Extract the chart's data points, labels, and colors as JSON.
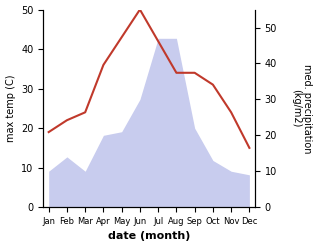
{
  "months": [
    "Jan",
    "Feb",
    "Mar",
    "Apr",
    "May",
    "Jun",
    "Jul",
    "Aug",
    "Sep",
    "Oct",
    "Nov",
    "Dec"
  ],
  "temperature": [
    19,
    22,
    24,
    36,
    43,
    50,
    42,
    34,
    34,
    31,
    24,
    15
  ],
  "precipitation": [
    10,
    14,
    10,
    20,
    21,
    30,
    47,
    47,
    22,
    13,
    10,
    9
  ],
  "temp_color": "#c0392b",
  "precip_fill_color": "#c8ccee",
  "temp_ylim": [
    0,
    50
  ],
  "precip_ylim": [
    0,
    55
  ],
  "xlabel": "date (month)",
  "ylabel_left": "max temp (C)",
  "ylabel_right": "med. precipitation\n(kg/m2)",
  "temp_yticks": [
    0,
    10,
    20,
    30,
    40,
    50
  ],
  "precip_yticks": [
    0,
    10,
    20,
    30,
    40,
    50
  ],
  "fig_width": 3.18,
  "fig_height": 2.47,
  "dpi": 100
}
